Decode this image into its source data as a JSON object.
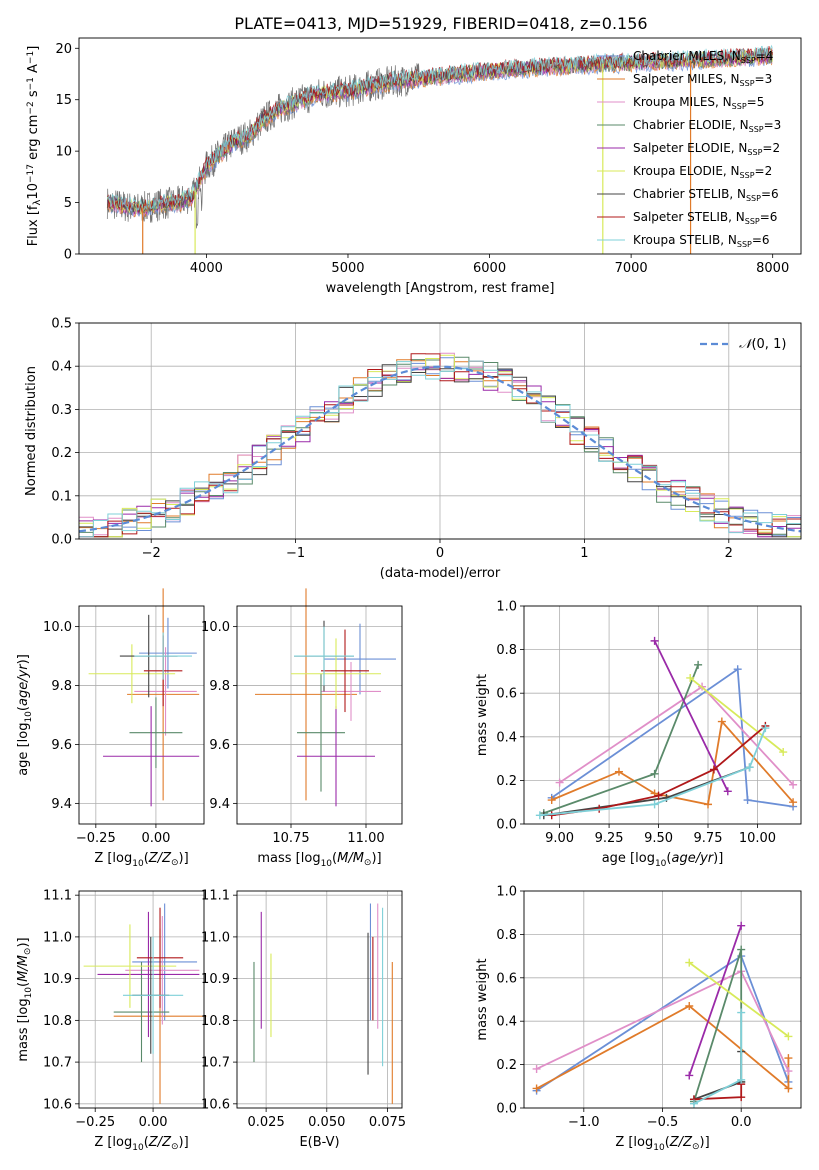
{
  "title": "PLATE=0413, MJD=51929, FIBERID=0418, z=0.156",
  "colors": [
    "#6b8fd6",
    "#e07b2a",
    "#e08fc8",
    "#5a8a6a",
    "#9a2aa8",
    "#d8ea5a",
    "#444444",
    "#b0181a",
    "#7fd0d8"
  ],
  "chart_data": [
    {
      "type": "line",
      "id": "spectrum",
      "xlabel": "wavelength [Angstrom, rest frame]",
      "ylabel": "Flux [f",
      "xlim": [
        3100,
        8200
      ],
      "ylim": [
        0,
        21
      ],
      "xticks": [
        "4000",
        "5000",
        "6000",
        "7000",
        "8000"
      ],
      "yticks": [
        "0",
        "5",
        "10",
        "15",
        "20"
      ],
      "continuum_x": [
        3300,
        3400,
        3500,
        3600,
        3700,
        3800,
        3900,
        4000,
        4100,
        4200,
        4300,
        4400,
        4500,
        4600,
        4800,
        5000,
        5200,
        5400,
        5600,
        5800,
        6000,
        6200,
        6400,
        6600,
        6800,
        7000,
        7200,
        7400,
        7600,
        7800,
        8000
      ],
      "continuum_y": [
        5.0,
        4.7,
        4.4,
        4.6,
        4.9,
        5.0,
        5.6,
        8.5,
        9.8,
        11.0,
        11.5,
        13.0,
        14.0,
        14.6,
        15.6,
        15.8,
        16.5,
        16.9,
        17.2,
        17.5,
        17.8,
        18.0,
        18.2,
        18.3,
        18.5,
        18.6,
        18.7,
        18.8,
        19.0,
        19.1,
        19.3
      ],
      "legend": [
        "Chabrier MILES, N",
        "Salpeter MILES, N",
        "Kroupa MILES, N",
        "Chabrier ELODIE, N",
        "Salpeter ELODIE, N",
        "Kroupa ELODIE, N",
        "Chabrier STELIB, N",
        "Salpeter STELIB, N",
        "Kroupa STELIB, N"
      ],
      "legend_n": [
        "4",
        "3",
        "5",
        "3",
        "2",
        "2",
        "6",
        "6",
        "6"
      ],
      "legend_sub": "SSP"
    },
    {
      "type": "step",
      "id": "residuals",
      "xlabel": "(data-model)/error",
      "ylabel": "Normed distribution",
      "xlim": [
        -2.5,
        2.5
      ],
      "ylim": [
        0,
        0.5
      ],
      "xticks": [
        "−2",
        "−1",
        "0",
        "1",
        "2"
      ],
      "yticks": [
        "0.0",
        "0.1",
        "0.2",
        "0.3",
        "0.4",
        "0.5"
      ],
      "gaussian_label": "(0, 1)",
      "gaussian_symbol": "𝒩"
    },
    {
      "type": "errorbar",
      "id": "z-age",
      "xlabel": "Z [log",
      "ylabel": "age  [log",
      "xlim": [
        -0.32,
        0.2
      ],
      "ylim": [
        9.33,
        10.07
      ],
      "xticks": [
        "−0.25",
        "0.00"
      ],
      "yticks": [
        "9.4",
        "9.6",
        "9.8",
        "10.0"
      ],
      "points": [
        {
          "x": 0.05,
          "y": 9.91,
          "xerr": 0.12,
          "yerr": 0.12
        },
        {
          "x": 0.03,
          "y": 9.77,
          "xerr": 0.15,
          "yerr": 0.36
        },
        {
          "x": 0.04,
          "y": 9.78,
          "xerr": 0.13,
          "yerr": 0.15
        },
        {
          "x": 0.0,
          "y": 9.64,
          "xerr": 0.11,
          "yerr": 0.12
        },
        {
          "x": -0.02,
          "y": 9.56,
          "xerr": 0.2,
          "yerr": 0.17
        },
        {
          "x": -0.1,
          "y": 9.84,
          "xerr": 0.18,
          "yerr": 0.1
        },
        {
          "x": -0.03,
          "y": 9.9,
          "xerr": 0.12,
          "yerr": 0.14
        },
        {
          "x": 0.03,
          "y": 9.85,
          "xerr": 0.08,
          "yerr": 0.12
        },
        {
          "x": 0.03,
          "y": 9.9,
          "xerr": 0.12,
          "yerr": 0.08
        }
      ]
    },
    {
      "type": "errorbar",
      "id": "mass-age",
      "xlabel": "mass [log",
      "ylabel": "",
      "xlim": [
        10.57,
        11.12
      ],
      "ylim": [
        9.33,
        10.07
      ],
      "xticks": [
        "10.75",
        "11.00"
      ],
      "yticks": [
        "9.4",
        "9.6",
        "9.8",
        "10.0"
      ],
      "points": [
        {
          "x": 10.98,
          "y": 9.89,
          "xerr": 0.12,
          "yerr": 0.12
        },
        {
          "x": 10.8,
          "y": 9.77,
          "xerr": 0.17,
          "yerr": 0.36
        },
        {
          "x": 10.95,
          "y": 9.78,
          "xerr": 0.1,
          "yerr": 0.1
        },
        {
          "x": 10.85,
          "y": 9.64,
          "xerr": 0.08,
          "yerr": 0.2
        },
        {
          "x": 10.9,
          "y": 9.56,
          "xerr": 0.13,
          "yerr": 0.17
        },
        {
          "x": 10.9,
          "y": 9.84,
          "xerr": 0.15,
          "yerr": 0.12
        },
        {
          "x": 10.86,
          "y": 9.9,
          "xerr": 0.1,
          "yerr": 0.12
        },
        {
          "x": 10.93,
          "y": 9.85,
          "xerr": 0.08,
          "yerr": 0.14
        },
        {
          "x": 10.86,
          "y": 9.9,
          "xerr": 0.1,
          "yerr": 0.1
        }
      ]
    },
    {
      "type": "line",
      "id": "weight-age",
      "xlabel": "age  [log",
      "ylabel": "mass weight",
      "xlim": [
        8.82,
        10.22
      ],
      "ylim": [
        0,
        1
      ],
      "xticks": [
        "9.00",
        "9.25",
        "9.50",
        "9.75",
        "10.00"
      ],
      "yticks": [
        "0.0",
        "0.2",
        "0.4",
        "0.6",
        "0.8",
        "1.0"
      ],
      "series": [
        {
          "x": [
            8.96,
            9.9,
            9.95,
            10.18
          ],
          "y": [
            0.12,
            0.71,
            0.11,
            0.08
          ]
        },
        {
          "x": [
            8.96,
            9.3,
            9.48,
            9.75,
            9.82,
            10.18
          ],
          "y": [
            0.11,
            0.24,
            0.14,
            0.09,
            0.47,
            0.1
          ]
        },
        {
          "x": [
            9.0,
            9.72,
            10.18
          ],
          "y": [
            0.19,
            0.63,
            0.18
          ]
        },
        {
          "x": [
            8.92,
            9.48,
            9.7
          ],
          "y": [
            0.05,
            0.23,
            0.73
          ]
        },
        {
          "x": [
            9.48,
            9.85
          ],
          "y": [
            0.84,
            0.15
          ]
        },
        {
          "x": [
            9.66,
            10.13
          ],
          "y": [
            0.67,
            0.33
          ]
        },
        {
          "x": [
            8.92,
            9.54,
            9.96
          ],
          "y": [
            0.04,
            0.12,
            0.26
          ]
        },
        {
          "x": [
            8.96,
            9.2,
            9.5,
            9.78,
            10.04
          ],
          "y": [
            0.04,
            0.07,
            0.13,
            0.25,
            0.45
          ]
        },
        {
          "x": [
            8.9,
            9.48,
            9.96,
            10.04
          ],
          "y": [
            0.04,
            0.09,
            0.26,
            0.44
          ]
        }
      ]
    },
    {
      "type": "errorbar",
      "id": "z-mass",
      "xlabel": "Z [log",
      "ylabel": "mass [log",
      "xlim": [
        -0.32,
        0.22
      ],
      "ylim": [
        10.59,
        11.11
      ],
      "xticks": [
        "−0.25",
        "0.00"
      ],
      "yticks": [
        "10.6",
        "10.7",
        "10.8",
        "10.9",
        "11.0",
        "11.1"
      ],
      "points": [
        {
          "x": 0.05,
          "y": 10.94,
          "xerr": 0.14,
          "yerr": 0.14
        },
        {
          "x": 0.03,
          "y": 10.81,
          "xerr": 0.2,
          "yerr": 0.21
        },
        {
          "x": 0.04,
          "y": 10.92,
          "xerr": 0.16,
          "yerr": 0.13
        },
        {
          "x": -0.05,
          "y": 10.82,
          "xerr": 0.12,
          "yerr": 0.12
        },
        {
          "x": -0.02,
          "y": 10.91,
          "xerr": 0.22,
          "yerr": 0.15
        },
        {
          "x": -0.1,
          "y": 10.93,
          "xerr": 0.2,
          "yerr": 0.1
        },
        {
          "x": -0.01,
          "y": 10.86,
          "xerr": 0.08,
          "yerr": 0.14
        },
        {
          "x": 0.03,
          "y": 10.95,
          "xerr": 0.1,
          "yerr": 0.12
        },
        {
          "x": 0.0,
          "y": 10.86,
          "xerr": 0.13,
          "yerr": 0.14
        }
      ]
    },
    {
      "type": "errorbar",
      "id": "ebv-mass",
      "xlabel": "E(B-V)",
      "ylabel": "",
      "xlim": [
        0.013,
        0.081
      ],
      "ylim": [
        10.59,
        11.11
      ],
      "xticks": [
        "0.025",
        "0.050",
        "0.075"
      ],
      "yticks": [
        "10.6",
        "10.7",
        "10.8",
        "10.9",
        "11.0",
        "11.1"
      ],
      "points": [
        {
          "x": 0.068,
          "y": 10.94,
          "xerr": 0,
          "yerr": 0.14
        },
        {
          "x": 0.077,
          "y": 10.77,
          "xerr": 0,
          "yerr": 0.17
        },
        {
          "x": 0.071,
          "y": 10.93,
          "xerr": 0,
          "yerr": 0.15
        },
        {
          "x": 0.02,
          "y": 10.82,
          "xerr": 0,
          "yerr": 0.12
        },
        {
          "x": 0.023,
          "y": 10.92,
          "xerr": 0,
          "yerr": 0.14
        },
        {
          "x": 0.027,
          "y": 10.86,
          "xerr": 0,
          "yerr": 0.1
        },
        {
          "x": 0.067,
          "y": 10.84,
          "xerr": 0,
          "yerr": 0.17
        },
        {
          "x": 0.069,
          "y": 10.9,
          "xerr": 0,
          "yerr": 0.1
        },
        {
          "x": 0.073,
          "y": 10.88,
          "xerr": 0,
          "yerr": 0.19
        }
      ]
    },
    {
      "type": "line",
      "id": "weight-z",
      "xlabel": "Z [log",
      "ylabel": "mass weight",
      "xlim": [
        -1.38,
        0.38
      ],
      "ylim": [
        0,
        1
      ],
      "xticks": [
        "−1.0",
        "−0.5",
        "0.0"
      ],
      "yticks": [
        "0.0",
        "0.2",
        "0.4",
        "0.6",
        "0.8",
        "1.0"
      ],
      "series": [
        {
          "x": [
            -1.3,
            0.0,
            0.3
          ],
          "y": [
            0.08,
            0.7,
            0.12
          ]
        },
        {
          "x": [
            -1.3,
            -0.33,
            0.3,
            0.3
          ],
          "y": [
            0.09,
            0.47,
            0.09,
            0.23
          ]
        },
        {
          "x": [
            -1.3,
            0.0,
            0.3
          ],
          "y": [
            0.18,
            0.63,
            0.17
          ]
        },
        {
          "x": [
            -0.3,
            0.0,
            0.0
          ],
          "y": [
            0.03,
            0.73,
            0.12
          ]
        },
        {
          "x": [
            -0.33,
            0.0
          ],
          "y": [
            0.15,
            0.84
          ]
        },
        {
          "x": [
            -0.33,
            0.3
          ],
          "y": [
            0.67,
            0.33
          ]
        },
        {
          "x": [
            -0.3,
            0.0,
            0.0
          ],
          "y": [
            0.04,
            0.12,
            0.26
          ]
        },
        {
          "x": [
            -0.3,
            0.0,
            0.0
          ],
          "y": [
            0.04,
            0.05,
            0.11
          ]
        },
        {
          "x": [
            -0.3,
            0.0,
            0.0
          ],
          "y": [
            0.02,
            0.13,
            0.44
          ]
        }
      ]
    }
  ]
}
